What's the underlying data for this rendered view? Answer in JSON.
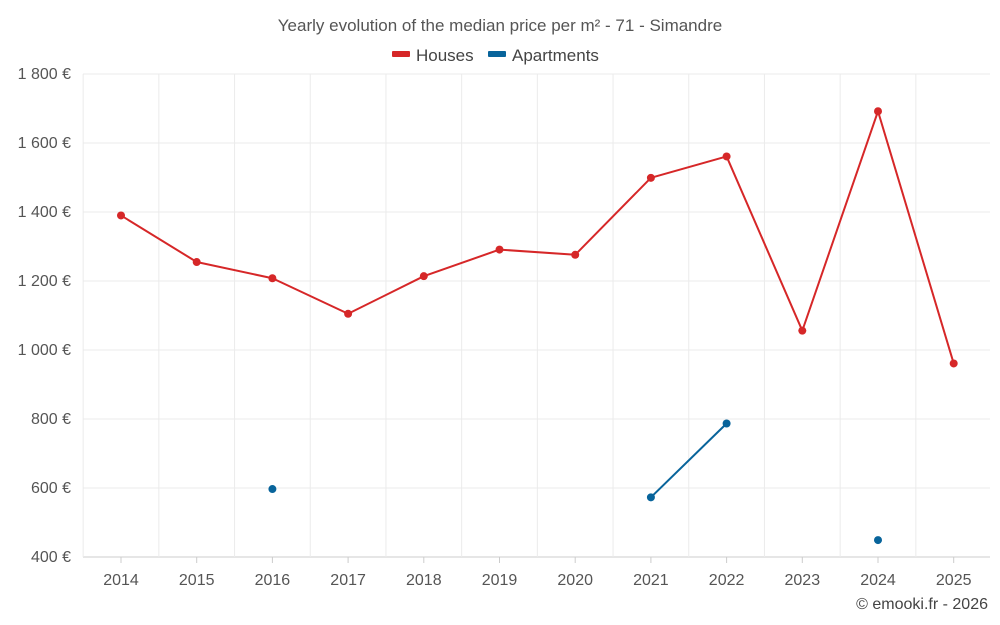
{
  "chart_data": {
    "type": "line",
    "title": "Yearly evolution of the median price per m² - 71 - Simandre",
    "categories": [
      "2014",
      "2015",
      "2016",
      "2017",
      "2018",
      "2019",
      "2020",
      "2021",
      "2022",
      "2023",
      "2024",
      "2025"
    ],
    "ylim": [
      400,
      1800
    ],
    "yticks": [
      400,
      600,
      800,
      1000,
      1200,
      1400,
      1600,
      1800
    ],
    "ytick_labels": [
      "400 €",
      "600 €",
      "800 €",
      "1 000 €",
      "1 200 €",
      "1 400 €",
      "1 600 €",
      "1 800 €"
    ],
    "grid": true,
    "legend_position": "top-center",
    "series": [
      {
        "name": "Houses",
        "color": "#d62728",
        "values": [
          1390,
          1255,
          1208,
          1105,
          1214,
          1291,
          1276,
          1499,
          1561,
          1056,
          1692,
          961
        ]
      },
      {
        "name": "Apartments",
        "color": "#08649b",
        "values": [
          null,
          null,
          597,
          null,
          null,
          null,
          null,
          573,
          787,
          null,
          449,
          null
        ]
      }
    ]
  },
  "credit": "© emooki.fr - 2026"
}
